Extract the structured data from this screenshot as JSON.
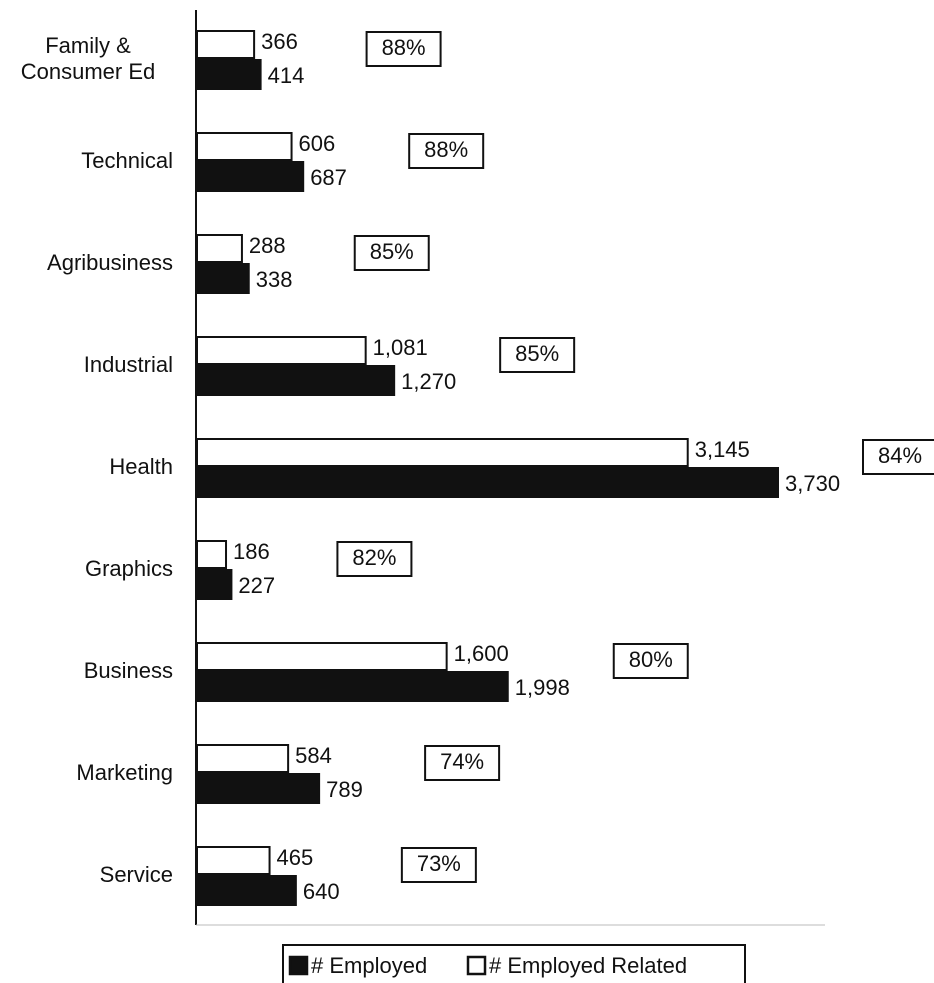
{
  "chart_data": {
    "type": "hbar",
    "categories": [
      "Family & Consumer Ed",
      "Technical",
      "Agribusiness",
      "Industrial",
      "Health",
      "Graphics",
      "Business",
      "Marketing",
      "Service"
    ],
    "series": [
      {
        "name": "# Employed",
        "color": "#111111",
        "values": [
          414,
          687,
          338,
          1270,
          3730,
          227,
          1998,
          789,
          640
        ],
        "value_labels": [
          "414",
          "687",
          "338",
          "1,270",
          "3,730",
          "227",
          "1,998",
          "789",
          "640"
        ]
      },
      {
        "name": "# Employed Related",
        "color": "#ffffff",
        "values": [
          366,
          606,
          288,
          1081,
          3145,
          186,
          1600,
          584,
          465
        ],
        "value_labels": [
          "366",
          "606",
          "288",
          "1,081",
          "3,145",
          "186",
          "1,600",
          "584",
          "465"
        ]
      }
    ],
    "annotations": [
      "88%",
      "88%",
      "85%",
      "85%",
      "84%",
      "82%",
      "80%",
      "74%",
      "73%"
    ]
  }
}
